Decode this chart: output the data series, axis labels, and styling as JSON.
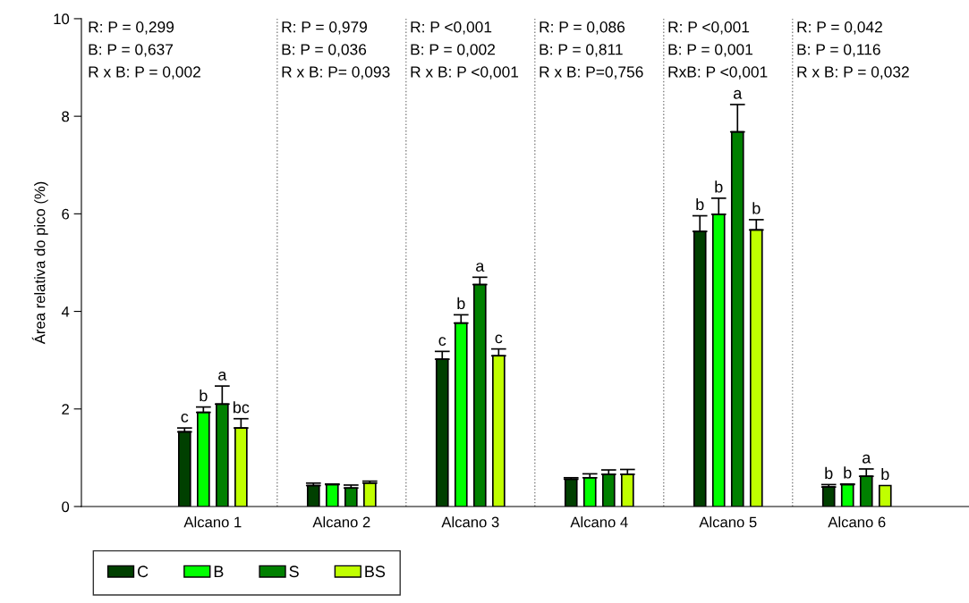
{
  "chart_data": {
    "type": "bar",
    "ylabel": "Área relativa do pico (%)",
    "categories": [
      "Alcano 1",
      "Alcano 2",
      "Alcano 3",
      "Alcano 4",
      "Alcano 5",
      "Alcano 6"
    ],
    "series": [
      {
        "name": "C",
        "color": "#004000",
        "values": [
          1.53,
          0.43,
          3.02,
          0.56,
          5.64,
          0.4
        ],
        "errors": [
          [
            1.53,
            1.61
          ],
          [
            0.43,
            0.48
          ],
          [
            3.02,
            3.18
          ],
          [
            0.56,
            0.59
          ],
          [
            5.64,
            5.96
          ],
          [
            0.4,
            0.45
          ]
        ],
        "value_labels": [
          "c",
          null,
          "c",
          null,
          "b",
          "b"
        ]
      },
      {
        "name": "B",
        "color": "#00ff00",
        "values": [
          1.93,
          0.45,
          3.76,
          0.59,
          5.99,
          0.45
        ],
        "errors": [
          [
            1.93,
            2.04
          ],
          [
            0.45,
            0.46
          ],
          [
            3.76,
            3.93
          ],
          [
            0.59,
            0.67
          ],
          [
            5.99,
            6.32
          ],
          [
            0.45,
            0.46
          ]
        ],
        "value_labels": [
          "b",
          null,
          "b",
          null,
          "b",
          "b"
        ]
      },
      {
        "name": "S",
        "color": "#008000",
        "values": [
          2.1,
          0.38,
          4.55,
          0.66,
          7.68,
          0.62
        ],
        "errors": [
          [
            2.1,
            2.47
          ],
          [
            0.38,
            0.44
          ],
          [
            4.55,
            4.7
          ],
          [
            0.66,
            0.75
          ],
          [
            7.68,
            8.24
          ],
          [
            0.62,
            0.77
          ]
        ],
        "value_labels": [
          "a",
          null,
          "a",
          null,
          "a",
          "a"
        ]
      },
      {
        "name": "BS",
        "color": "#c0ff00",
        "values": [
          1.61,
          0.48,
          3.09,
          0.66,
          5.67,
          0.43
        ],
        "errors": [
          [
            1.61,
            1.8
          ],
          [
            0.48,
            0.52
          ],
          [
            3.09,
            3.23
          ],
          [
            0.66,
            0.76
          ],
          [
            5.67,
            5.88
          ],
          null
        ],
        "value_labels": [
          "bc",
          null,
          "c",
          null,
          "b",
          "b"
        ]
      }
    ],
    "ylim": [
      0,
      10
    ],
    "yticks": [
      0,
      2,
      4,
      6,
      8,
      10
    ],
    "grid": false,
    "legend": "bottom left",
    "annotations": [
      "R: P = 0,299",
      "B: P = 0,637",
      "R x B: P = 0,002",
      "R: P = 0,979",
      "B: P = 0,036",
      "R x B: P= 0,093",
      "R: P <0,001",
      "B: P = 0,002",
      "R x B: P <0,001",
      "R: P = 0,086",
      "B: P = 0,811",
      "R x B: P=0,756",
      "R: P <0,001",
      "B: P = 0,001",
      "RxB: P <0,001",
      "R: P = 0,042",
      "B: P = 0,116",
      "R x B: P = 0,032"
    ]
  }
}
